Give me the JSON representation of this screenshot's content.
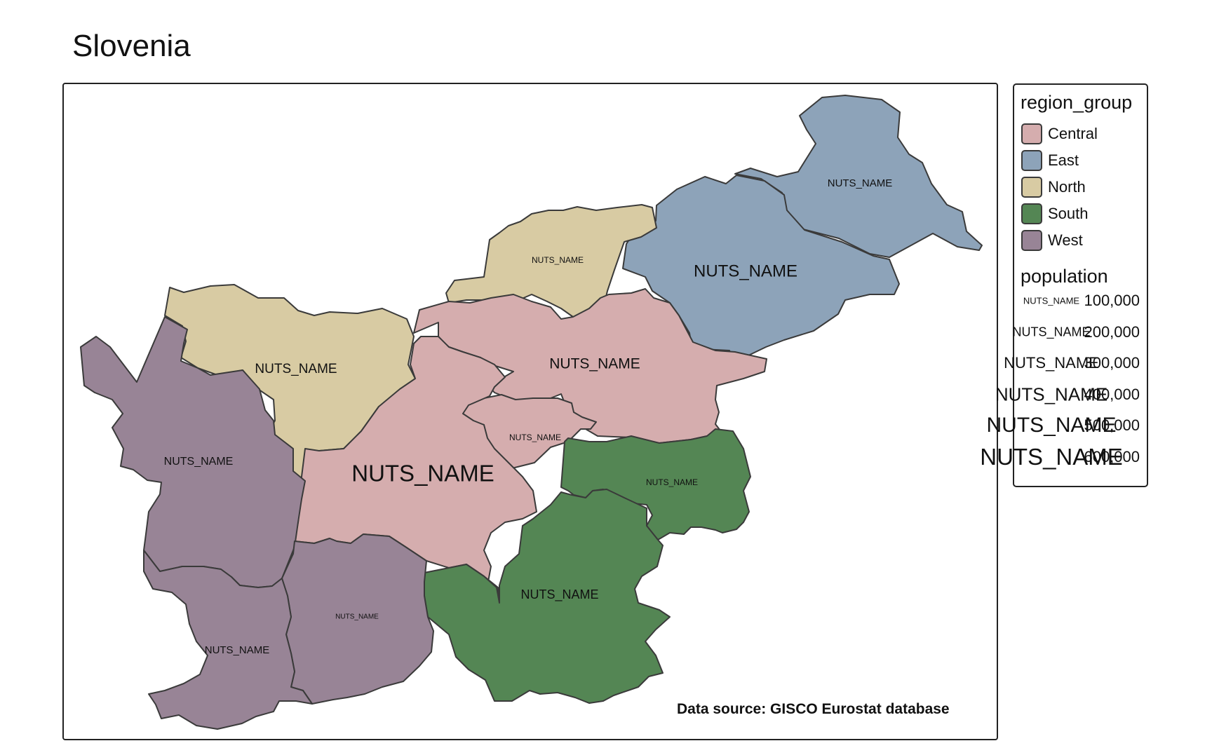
{
  "title": "Slovenia",
  "source_note": "Data source: GISCO Eurostat database",
  "colors": {
    "Central": "#d5adae",
    "East": "#8da3b9",
    "North": "#d8cba3",
    "South": "#548654",
    "West": "#988496"
  },
  "regions": [
    {
      "id": "pomurska",
      "group": "East",
      "label": "NUTS_NAME"
    },
    {
      "id": "podravska",
      "group": "East",
      "label": "NUTS_NAME"
    },
    {
      "id": "koroska",
      "group": "North",
      "label": "NUTS_NAME"
    },
    {
      "id": "gorenjska",
      "group": "North",
      "label": "NUTS_NAME"
    },
    {
      "id": "savinjska",
      "group": "Central",
      "label": "NUTS_NAME"
    },
    {
      "id": "zasavska",
      "group": "Central",
      "label": "NUTS_NAME"
    },
    {
      "id": "osrednjeslovenska",
      "group": "Central",
      "label": "NUTS_NAME"
    },
    {
      "id": "posavska",
      "group": "South",
      "label": "NUTS_NAME"
    },
    {
      "id": "jugovzhodna",
      "group": "South",
      "label": "NUTS_NAME"
    },
    {
      "id": "goriska",
      "group": "West",
      "label": "NUTS_NAME"
    },
    {
      "id": "primorsko-notranjska",
      "group": "West",
      "label": "NUTS_NAME"
    },
    {
      "id": "obalno-kraska",
      "group": "West",
      "label": "NUTS_NAME"
    }
  ],
  "legend": {
    "group_title": "region_group",
    "groups": [
      "Central",
      "East",
      "North",
      "South",
      "West"
    ],
    "size_title": "population",
    "sizes": [
      {
        "value": "100,000",
        "symbol": "NUTS_NAME"
      },
      {
        "value": "200,000",
        "symbol": "NUTS_NAME"
      },
      {
        "value": "300,000",
        "symbol": "NUTS_NAME"
      },
      {
        "value": "400,000",
        "symbol": "NUTS_NAME"
      },
      {
        "value": "500,000",
        "symbol": "NUTS_NAME"
      },
      {
        "value": "600,000",
        "symbol": "NUTS_NAME"
      }
    ]
  }
}
